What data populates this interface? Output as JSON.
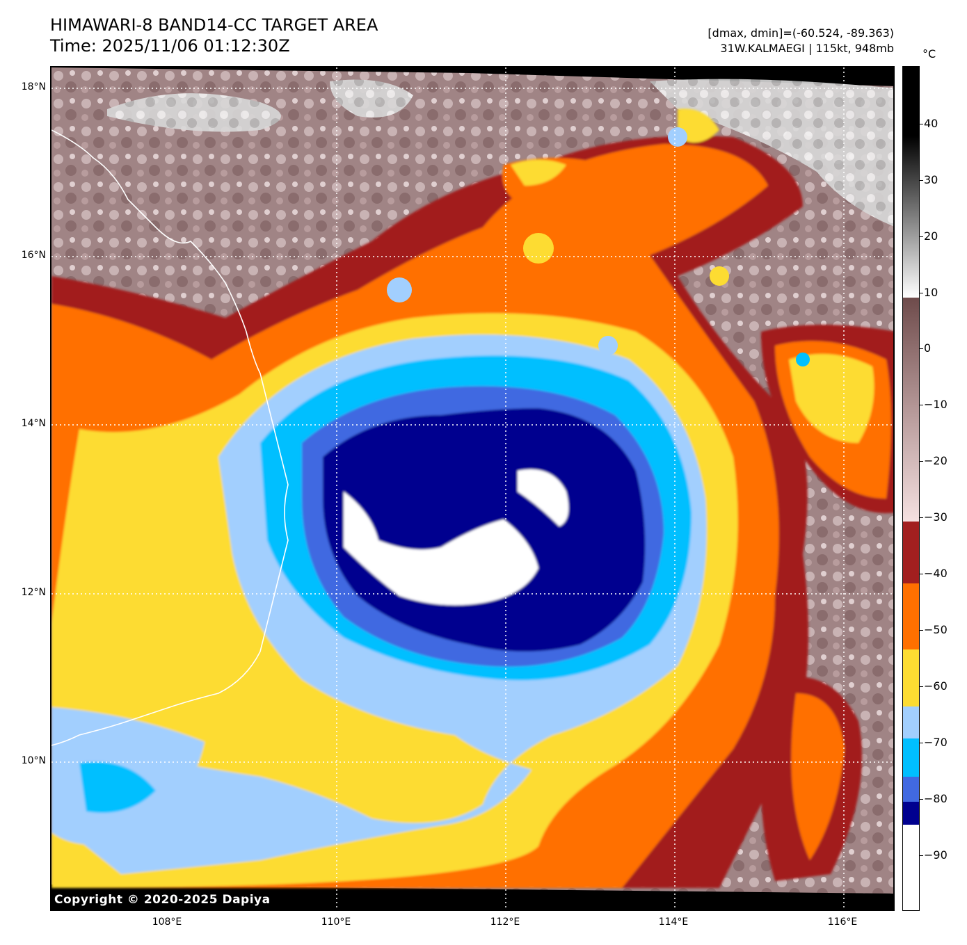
{
  "header": {
    "title": "HIMAWARI-8 BAND14-CC TARGET AREA",
    "time": "Time: 2025/11/06 01:12:30Z",
    "dminmax": "[dmax, dmin]=(-60.524, -89.363)",
    "storm": "31W.KALMAEGI | 115kt, 948mb"
  },
  "map": {
    "latitudes": [
      "18°N",
      "16°N",
      "14°N",
      "12°N",
      "10°N"
    ],
    "longitudes": [
      "108°E",
      "110°E",
      "112°E",
      "114°E",
      "116°E"
    ],
    "copyright": "Copyright © 2020-2025 Dapiya",
    "coast_color": "#ffffff"
  },
  "colorbar": {
    "unit": "°C",
    "ticks": [
      "40",
      "30",
      "20",
      "10",
      "0",
      "−10",
      "−20",
      "−30",
      "−40",
      "−50",
      "−60",
      "−70",
      "−80",
      "−90"
    ],
    "colors": {
      "white_band": "#ffffff",
      "navy": "#00008f",
      "royal_blue": "#4169e1",
      "deep_sky": "#00bfff",
      "light_blue": "#a2cffe",
      "yellow": "#fddc32",
      "orange": "#ff7000",
      "dark_red": "#a21f1f"
    }
  }
}
